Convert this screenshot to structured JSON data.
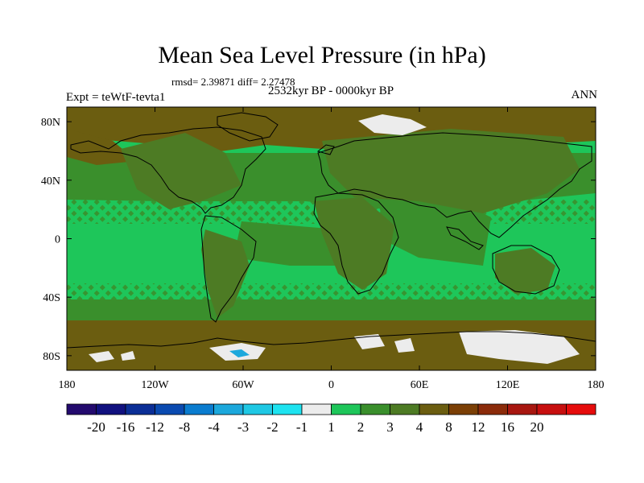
{
  "title": "Mean Sea Level Pressure (in hPa)",
  "stats": "rmsd= 2.39871 diff= 2.27478",
  "subtitle": "2532kyr BP - 0000kyr BP",
  "expt": "Expt = teWtF-tevta1",
  "season": "ANN",
  "chart_data": {
    "type": "heatmap",
    "projection": "cylindrical-equidistant",
    "xlim": [
      -180,
      180
    ],
    "ylim": [
      -90,
      90
    ],
    "x_ticks": [
      {
        "value": -180,
        "label": "180"
      },
      {
        "value": -120,
        "label": "120W"
      },
      {
        "value": -60,
        "label": "60W"
      },
      {
        "value": 0,
        "label": "0"
      },
      {
        "value": 60,
        "label": "60E"
      },
      {
        "value": 120,
        "label": "120E"
      },
      {
        "value": 180,
        "label": "180"
      }
    ],
    "y_ticks": [
      {
        "value": 80,
        "label": "80N"
      },
      {
        "value": 40,
        "label": "40N"
      },
      {
        "value": 0,
        "label": "0"
      },
      {
        "value": -40,
        "label": "40S"
      },
      {
        "value": -80,
        "label": "80S"
      }
    ],
    "colorbar": {
      "colors": [
        "#230a6e",
        "#11117f",
        "#0b2e96",
        "#0a4ab0",
        "#0a7ccf",
        "#1ca8dc",
        "#1fc8e4",
        "#1ee3f0",
        "#ececec",
        "#1ec65a",
        "#3a8f2c",
        "#4d7b24",
        "#6b5d10",
        "#7b3f05",
        "#8b2b0a",
        "#a81710",
        "#c70f0f",
        "#e60c0c"
      ],
      "labels": [
        "-20",
        "-16",
        "-12",
        "-8",
        "-4",
        "-3",
        "-2",
        "-1",
        "1",
        "2",
        "3",
        "4",
        "8",
        "12",
        "16",
        "20"
      ]
    },
    "fields": {
      "mid_green": "#3a8f2c",
      "light_green": "#1ec65a",
      "olive": "#4d7b24",
      "brown": "#6b5d10",
      "white": "#ececec",
      "cyan": "#1fc8e4",
      "blue": "#1ca8dc"
    }
  }
}
